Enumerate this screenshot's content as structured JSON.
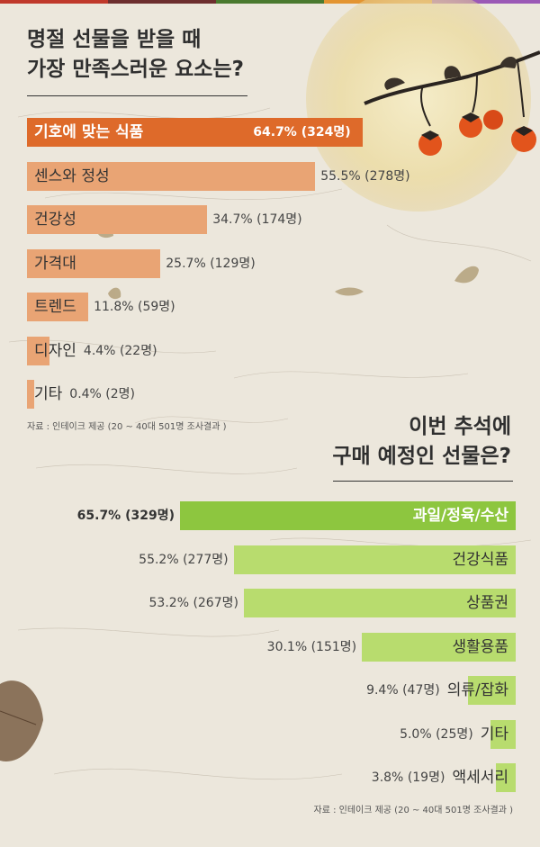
{
  "palette": {
    "top_stripes": [
      "#c0392b",
      "#6d2f2f",
      "#4a7a2f",
      "#e39431",
      "#9b59b6"
    ],
    "orange_primary": "#de6a2a",
    "orange_light": "#e9a474",
    "green_primary": "#8dc63f",
    "green_light": "#b8dc6e"
  },
  "top_section": {
    "title_line1": "명절 선물을 받을 때",
    "title_line2": "가장 만족스러운 요소는?",
    "source": "자료 : 인테이크 제공 (20 ~ 40대 501명 조사결과 )"
  },
  "bottom_section": {
    "title_line1": "이번 추석에",
    "title_line2": "구매 예정인 선물은?",
    "source": "자료 : 인테이크 제공 (20 ~ 40대 501명 조사결과 )"
  },
  "chart_data": [
    {
      "type": "bar",
      "orientation": "horizontal",
      "title": "명절 선물을 받을 때 가장 만족스러운 요소는?",
      "categories": [
        "기호에 맞는 식품",
        "센스와 정성",
        "건강성",
        "가격대",
        "트렌드",
        "디자인",
        "기타"
      ],
      "values": [
        64.7,
        55.5,
        34.7,
        25.7,
        11.8,
        4.4,
        0.4
      ],
      "counts": [
        324,
        278,
        174,
        129,
        59,
        22,
        2
      ],
      "value_labels": [
        "64.7% (324명)",
        "55.5% (278명)",
        "34.7% (174명)",
        "25.7% (129명)",
        "11.8% (59명)",
        "4.4% (22명)",
        "0.4% (2명)"
      ],
      "unit": "%",
      "bar_direction": "left-to-right"
    },
    {
      "type": "bar",
      "orientation": "horizontal",
      "title": "이번 추석에 구매 예정인 선물은?",
      "categories": [
        "과일/정육/수산",
        "건강식품",
        "상품권",
        "생활용품",
        "의류/잡화",
        "기타",
        "액세서리"
      ],
      "values": [
        65.7,
        55.2,
        53.2,
        30.1,
        9.4,
        5.0,
        3.8
      ],
      "counts": [
        329,
        277,
        267,
        151,
        47,
        25,
        19
      ],
      "value_labels": [
        "65.7% (329명)",
        "55.2% (277명)",
        "53.2% (267명)",
        "30.1% (151명)",
        "9.4% (47명)",
        "5.0% (25명)",
        "3.8% (19명)"
      ],
      "unit": "%",
      "bar_direction": "right-to-left"
    }
  ]
}
